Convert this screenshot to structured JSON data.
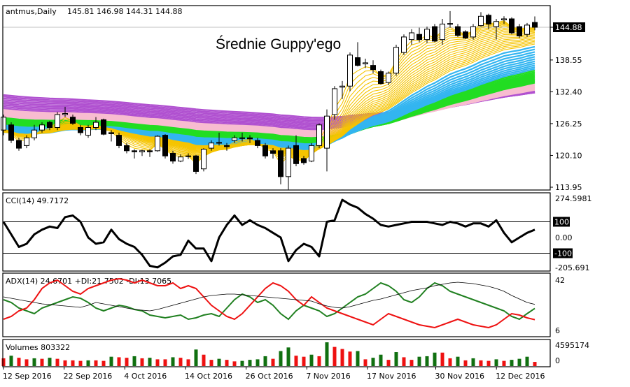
{
  "header": {
    "symbol": "antmus,Daily",
    "ohlc": "145.81 146.98 144.31 144.88"
  },
  "annotation": "Średnie Guppy'ego",
  "colors": {
    "bull_body": "#ffffff",
    "bear_body": "#000000",
    "guppy_short": "#f5c400",
    "guppy_blue": "#33b5f0",
    "guppy_green": "#22dd22",
    "guppy_pink": "#f8bcd0",
    "guppy_purple": "#b050d0",
    "cci": "#000000",
    "adx": "#000000",
    "plus_di": "#208020",
    "minus_di": "#ee1111",
    "vol_up": "#107010",
    "vol_down": "#ee1111"
  },
  "main": {
    "price_ticks": [
      "144.88",
      "138.55",
      "132.40",
      "126.25",
      "120.10",
      "113.95"
    ],
    "current_price": "144.88"
  },
  "chart_data": [
    {
      "type": "candlestick",
      "title": "antmus,Daily",
      "ylim": [
        113.95,
        144.88
      ],
      "ohlc": [
        [
          125,
          128,
          124,
          127.5
        ],
        [
          126,
          126.5,
          122.5,
          123
        ],
        [
          123,
          123.5,
          121,
          121.5
        ],
        [
          122,
          124,
          121.5,
          123.5
        ],
        [
          123.5,
          126,
          123,
          125
        ],
        [
          125,
          126.5,
          124.5,
          126
        ],
        [
          126.5,
          126.8,
          125,
          125.5
        ],
        [
          125.5,
          128.5,
          125,
          128
        ],
        [
          128,
          129.5,
          127.5,
          128.2
        ],
        [
          127.5,
          128,
          126,
          126.3
        ],
        [
          125.5,
          126,
          124,
          124.5
        ],
        [
          124,
          126,
          123.5,
          125.5
        ],
        [
          125.5,
          127.5,
          125,
          126.5
        ],
        [
          127,
          127.2,
          124,
          124.2
        ],
        [
          124.5,
          125,
          122.8,
          124.3
        ],
        [
          124,
          124.5,
          121.5,
          122
        ],
        [
          122,
          122.5,
          120.5,
          121
        ],
        [
          121,
          121.3,
          119.5,
          120.8
        ],
        [
          120.8,
          121.2,
          120,
          121
        ],
        [
          121,
          121.3,
          119.8,
          120.8
        ],
        [
          121,
          124,
          120.8,
          123.8
        ],
        [
          124,
          124.2,
          119.5,
          120
        ],
        [
          120.5,
          121,
          118.5,
          119
        ],
        [
          119,
          120.3,
          118.8,
          119.8
        ],
        [
          120,
          120.5,
          119.4,
          120
        ],
        [
          120,
          120.2,
          116.5,
          117
        ],
        [
          117.5,
          121.5,
          117,
          121.3
        ],
        [
          121.5,
          123,
          121,
          122.5
        ],
        [
          122.5,
          124.5,
          122,
          122.6
        ],
        [
          122,
          122.5,
          121,
          121.8
        ],
        [
          123,
          124,
          122.5,
          123.5
        ],
        [
          123.5,
          124.5,
          122.8,
          123.5
        ],
        [
          123.5,
          124,
          122.5,
          123.3
        ],
        [
          123,
          123.5,
          121.5,
          122
        ],
        [
          122,
          122.5,
          119.5,
          120
        ],
        [
          121,
          121.5,
          119.5,
          120.5
        ],
        [
          121,
          121.5,
          114.5,
          116
        ],
        [
          116,
          122,
          113.5,
          121.5
        ],
        [
          122,
          124,
          118,
          118.5
        ],
        [
          119.5,
          120,
          118.3,
          118.7
        ],
        [
          119,
          122.5,
          118.8,
          122
        ],
        [
          122,
          126.3,
          121.5,
          126
        ],
        [
          121.5,
          129,
          117,
          127.7
        ],
        [
          128,
          133.5,
          127,
          133
        ],
        [
          133.3,
          134.5,
          131,
          133.5
        ],
        [
          133.5,
          140,
          132.5,
          139.5
        ],
        [
          139,
          142,
          137.3,
          137.5
        ],
        [
          137.8,
          138.8,
          137,
          138
        ],
        [
          137.5,
          138.5,
          136,
          136.7
        ],
        [
          136.3,
          136.7,
          133.8,
          134
        ],
        [
          134.2,
          136.3,
          133.7,
          136
        ],
        [
          136,
          141.5,
          135.5,
          141
        ],
        [
          140,
          143.5,
          139.5,
          143
        ],
        [
          142.5,
          144.5,
          141.5,
          143.8
        ],
        [
          143.5,
          144.8,
          142,
          142.5
        ],
        [
          142.5,
          145,
          141.8,
          144.5
        ],
        [
          145,
          145.5,
          142,
          142.2
        ],
        [
          142.5,
          146.5,
          141.5,
          145.5
        ],
        [
          145.5,
          148,
          144.8,
          145.6
        ],
        [
          145,
          145.5,
          143,
          143.3
        ],
        [
          144,
          144.3,
          142.6,
          142.8
        ],
        [
          143,
          145.5,
          142.5,
          145
        ],
        [
          145.2,
          147.8,
          145,
          147
        ],
        [
          147.2,
          147.5,
          144.5,
          145.5
        ],
        [
          145,
          146.5,
          142.5,
          146
        ],
        [
          146.3,
          147,
          145.5,
          146.5
        ],
        [
          146.5,
          146.8,
          143.5,
          143.8
        ],
        [
          145,
          145.5,
          142.8,
          143.2
        ],
        [
          143.5,
          145.7,
          143,
          145.3
        ],
        [
          145.81,
          146.98,
          144.31,
          144.88
        ]
      ],
      "x_tick_labels": [
        {
          "bar": 0,
          "label": "12 Sep 2016"
        },
        {
          "bar": 8,
          "label": "22 Sep 2016"
        },
        {
          "bar": 16,
          "label": "4 Oct 2016"
        },
        {
          "bar": 24,
          "label": "14 Oct 2016"
        },
        {
          "bar": 32,
          "label": "26 Oct 2016"
        },
        {
          "bar": 40,
          "label": "7 Nov 2016"
        },
        {
          "bar": 48,
          "label": "17 Nov 2016"
        },
        {
          "bar": 57,
          "label": "30 Nov 2016"
        },
        {
          "bar": 65,
          "label": "12 Dec 2016"
        }
      ],
      "overlay": "Guppy multiple moving averages"
    },
    {
      "type": "line",
      "title": "CCI(14) 49.7172",
      "ylim": [
        -205.691,
        274.5981
      ],
      "levels": [
        "100",
        "-100"
      ],
      "axis_labels": [
        "274.5981",
        "0.00",
        "-205.691"
      ],
      "values": [
        100,
        20,
        -60,
        -40,
        20,
        50,
        70,
        60,
        130,
        140,
        100,
        0,
        -40,
        -30,
        50,
        -10,
        -40,
        -60,
        -110,
        -180,
        -190,
        -160,
        -120,
        -110,
        -20,
        -70,
        -70,
        -150,
        0,
        80,
        140,
        80,
        110,
        80,
        60,
        30,
        0,
        -150,
        -80,
        -40,
        -60,
        -120,
        100,
        110,
        240,
        210,
        190,
        150,
        120,
        80,
        70,
        80,
        90,
        100,
        100,
        100,
        90,
        80,
        100,
        90,
        70,
        90,
        90,
        70,
        110,
        30,
        -30,
        0,
        30,
        49.7172
      ]
    },
    {
      "type": "line",
      "title": "ADX(14) 24.6701 +DI:21.7502 -DI:13.7065",
      "ylim": [
        6,
        42
      ],
      "axis_labels": [
        "42",
        "6"
      ],
      "series": [
        {
          "name": "ADX",
          "values": [
            30,
            29,
            28,
            27,
            26,
            25,
            24.5,
            24,
            23.5,
            23,
            22.5,
            24,
            26,
            25,
            24,
            23,
            22,
            21,
            20.5,
            20,
            21,
            22.5,
            24,
            25.5,
            27,
            28.5,
            30,
            31,
            31.5,
            32,
            32,
            31.5,
            31,
            30.5,
            30,
            29.5,
            29,
            28.5,
            28,
            27.5,
            27,
            25,
            23.5,
            22.5,
            22,
            23,
            24.5,
            26,
            27.5,
            28.5,
            30,
            31.5,
            33,
            34.5,
            35.5,
            36.5,
            38,
            39,
            40,
            40.5,
            40,
            39.5,
            38.5,
            37.5,
            36,
            34,
            31,
            28.5,
            26,
            24.6701
          ]
        },
        {
          "name": "+DI",
          "values": [
            28,
            26,
            22,
            20,
            18,
            22,
            24,
            26,
            28,
            30,
            29,
            26,
            22,
            20,
            22,
            24,
            23,
            21,
            20,
            17,
            16,
            15,
            16,
            17,
            14,
            15,
            17,
            18,
            16,
            22,
            28,
            32,
            30,
            26,
            28,
            24,
            18,
            14,
            20,
            24,
            22,
            20,
            16,
            18,
            22,
            26,
            30,
            32,
            36,
            40,
            38,
            34,
            28,
            26,
            30,
            36,
            40,
            38,
            34,
            32,
            30,
            28,
            26,
            24,
            22,
            20,
            16,
            14,
            18,
            21.7502
          ]
        },
        {
          "name": "-DI",
          "values": [
            14,
            16,
            20,
            22,
            28,
            36,
            40,
            42,
            38,
            34,
            32,
            36,
            38,
            40,
            42,
            43,
            42,
            40,
            42,
            40,
            38,
            38,
            40,
            36,
            38,
            36,
            30,
            24,
            20,
            16,
            14,
            18,
            24,
            30,
            36,
            40,
            38,
            34,
            28,
            24,
            30,
            26,
            22,
            20,
            18,
            16,
            14,
            12,
            10,
            14,
            18,
            16,
            14,
            12,
            10,
            9,
            8,
            10,
            12,
            14,
            12,
            10,
            9,
            8,
            10,
            14,
            18,
            17,
            15,
            13.7065
          ]
        }
      ]
    },
    {
      "type": "bar",
      "title": "Volumes 803322",
      "ylim": [
        0,
        4595174
      ],
      "axis_labels": [
        "4595174",
        "0"
      ],
      "values": [
        1500000,
        2000000,
        1600000,
        1300000,
        1500000,
        1400000,
        1600000,
        1400000,
        1100000,
        1100000,
        1000000,
        1100000,
        1100000,
        1000000,
        1800000,
        1700000,
        1600000,
        1900000,
        1500000,
        1600000,
        1300000,
        1300000,
        1700000,
        1600000,
        1300000,
        3200000,
        2200000,
        1200000,
        1400000,
        1200000,
        900000,
        1000000,
        1200000,
        1300000,
        1900000,
        1400000,
        2900000,
        3600000,
        2000000,
        1800000,
        2200000,
        1900000,
        4595174,
        3700000,
        3300000,
        2800000,
        2900000,
        1300000,
        1600000,
        2200000,
        1200000,
        2700000,
        1700000,
        1200000,
        1800000,
        1900000,
        2600000,
        2600000,
        1500000,
        1800000,
        1100000,
        1500000,
        1100000,
        1000000,
        1300000,
        1000000,
        1200000,
        1400000,
        1800000,
        803322
      ]
    }
  ]
}
